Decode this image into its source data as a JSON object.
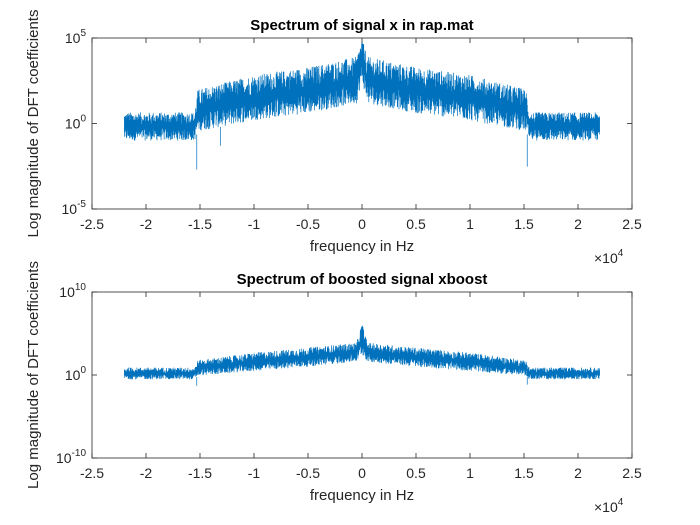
{
  "chart_data": [
    {
      "type": "line",
      "title": "Spectrum of signal x in rap.mat",
      "xlabel": "frequency in Hz",
      "ylabel": "Log magnitude of DFT coefficients",
      "x_scale_factor_label": "×10",
      "x_scale_exponent": "4",
      "xlim": [
        -2.5,
        2.5
      ],
      "x_ticks": [
        "-2.5",
        "-2",
        "-1.5",
        "-1",
        "-0.5",
        "0",
        "0.5",
        "1",
        "1.5",
        "2",
        "2.5"
      ],
      "y_scale": "log",
      "ylim": [
        1e-05,
        100000.0
      ],
      "y_ticks": [
        {
          "base": "10",
          "exp": "5",
          "value": 100000.0
        },
        {
          "base": "10",
          "exp": "0",
          "value": 1
        },
        {
          "base": "10",
          "exp": "-5",
          "value": 1e-05
        }
      ],
      "series_color": "#0072BD",
      "envelope": {
        "x": [
          -2.2,
          -1.55,
          -1.52,
          -1.0,
          -0.5,
          -0.05,
          0.0,
          0.05,
          0.5,
          1.0,
          1.52,
          1.55,
          2.2
        ],
        "upper": [
          4.5,
          4.5,
          100,
          700,
          2000,
          8000,
          100000,
          8000,
          2000,
          700,
          100,
          4.5,
          4.5
        ],
        "lower": [
          0.1,
          0.1,
          0.35,
          1.5,
          4,
          15,
          300,
          15,
          4,
          1.5,
          0.35,
          0.1,
          0.1
        ],
        "min_dips": [
          {
            "x": -1.53,
            "y": 0.002
          },
          {
            "x": -1.31,
            "y": 0.05
          },
          {
            "x": 1.53,
            "y": 0.003
          }
        ]
      }
    },
    {
      "type": "line",
      "title": "Spectrum of boosted signal xboost",
      "xlabel": "frequency in Hz",
      "ylabel": "Log magnitude of DFT coefficients",
      "x_scale_factor_label": "×10",
      "x_scale_exponent": "4",
      "xlim": [
        -2.5,
        2.5
      ],
      "x_ticks": [
        "-2.5",
        "-2",
        "-1.5",
        "-1",
        "-0.5",
        "0",
        "0.5",
        "1",
        "1.5",
        "2",
        "2.5"
      ],
      "y_scale": "log",
      "ylim": [
        1e-10,
        10000000000.0
      ],
      "y_ticks": [
        {
          "base": "10",
          "exp": "10",
          "value": 10000000000.0
        },
        {
          "base": "10",
          "exp": "0",
          "value": 1
        },
        {
          "base": "10",
          "exp": "-10",
          "value": 1e-10
        }
      ],
      "series_color": "#0072BD",
      "envelope": {
        "x": [
          -2.2,
          -1.55,
          -1.52,
          -1.0,
          -0.5,
          -0.05,
          0.0,
          0.05,
          0.5,
          1.0,
          1.52,
          1.55,
          2.2
        ],
        "upper": [
          8,
          8,
          60,
          500,
          2000,
          8000,
          2000000,
          8000,
          2000,
          500,
          60,
          8,
          8
        ],
        "lower": [
          0.3,
          0.3,
          0.8,
          3,
          10,
          40,
          300,
          40,
          10,
          3,
          0.8,
          0.3,
          0.3
        ],
        "min_dips": [
          {
            "x": -1.53,
            "y": 0.05
          },
          {
            "x": 1.53,
            "y": 0.07
          }
        ]
      }
    }
  ]
}
